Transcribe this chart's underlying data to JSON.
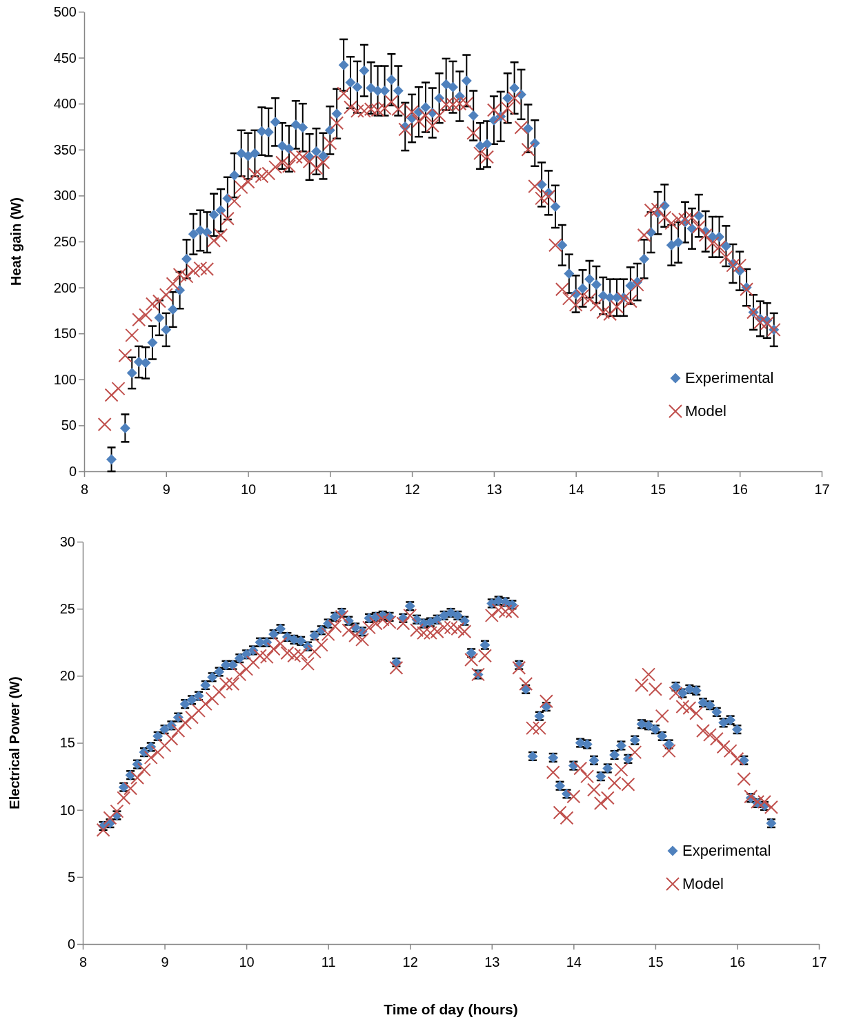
{
  "chart_data": [
    {
      "type": "scatter",
      "ylabel": "Heat gain (W)",
      "xlim": [
        8,
        17
      ],
      "xticks": [
        8,
        9,
        10,
        11,
        12,
        13,
        14,
        15,
        16,
        17
      ],
      "ylim": [
        0,
        500
      ],
      "yticks": [
        0,
        50,
        100,
        150,
        200,
        250,
        300,
        350,
        400,
        450,
        500
      ],
      "legend": "right",
      "grid": false,
      "series": [
        {
          "name": "Experimental",
          "color": "#4f81bd",
          "marker": "diamond",
          "x": [
            8.333,
            8.417,
            8.5,
            8.583,
            8.667,
            8.75,
            8.833,
            8.917,
            9,
            9.083,
            9.167,
            9.25,
            9.333,
            9.417,
            9.5,
            9.583,
            9.667,
            9.75,
            9.833,
            9.917,
            10,
            10.083,
            10.167,
            10.25,
            10.333,
            10.417,
            10.5,
            10.583,
            10.667,
            10.75,
            10.833,
            10.917,
            11,
            11.083,
            11.167,
            11.25,
            11.333,
            11.417,
            11.5,
            11.583,
            11.667,
            11.75,
            11.833,
            11.917,
            12,
            12.083,
            12.167,
            12.25,
            12.333,
            12.417,
            12.5,
            12.583,
            12.667,
            12.75,
            12.833,
            12.917,
            13,
            13.083,
            13.167,
            13.25,
            13.333,
            13.417,
            13.5,
            13.583,
            13.667,
            13.75,
            13.833,
            13.917,
            14,
            14.083,
            14.167,
            14.25,
            14.333,
            14.417,
            14.5,
            14.583,
            14.667,
            14.75,
            14.833,
            14.917,
            15,
            15.083,
            15.167,
            15.25,
            15.333,
            15.417,
            15.5,
            15.583,
            15.667,
            15.75,
            15.833,
            15.917,
            16,
            16.083,
            16.167,
            16.25,
            16.333,
            16.417
          ],
          "values": [
            13,
            null,
            47,
            107,
            119,
            118,
            140,
            167,
            154,
            176,
            197,
            231,
            258,
            262,
            260,
            279,
            284,
            297,
            322,
            346,
            343,
            346,
            370,
            369,
            380,
            354,
            351,
            377,
            374,
            342,
            348,
            343,
            371,
            389,
            442,
            423,
            418,
            436,
            417,
            414,
            414,
            426,
            414,
            375,
            384,
            391,
            396,
            390,
            406,
            421,
            418,
            408,
            425,
            387,
            354,
            356,
            382,
            386,
            406,
            417,
            410,
            373,
            357,
            312,
            303,
            288,
            246,
            215,
            193,
            199,
            209,
            203,
            191,
            189,
            189,
            189,
            202,
            206,
            231,
            260,
            281,
            289,
            246,
            249,
            271,
            264,
            278,
            261,
            255,
            255,
            245,
            226,
            218,
            200,
            173,
            166,
            164,
            154
          ],
          "errors": [
            13,
            null,
            15,
            17,
            17,
            17,
            18,
            19,
            18,
            19,
            20,
            21,
            22,
            22,
            22,
            23,
            23,
            23,
            24,
            25,
            25,
            25,
            26,
            26,
            26,
            25,
            25,
            26,
            26,
            25,
            25,
            25,
            26,
            27,
            28,
            28,
            28,
            28,
            28,
            27,
            27,
            28,
            27,
            26,
            26,
            27,
            27,
            27,
            27,
            28,
            28,
            27,
            28,
            27,
            25,
            25,
            26,
            27,
            27,
            28,
            27,
            26,
            25,
            24,
            24,
            23,
            22,
            21,
            20,
            20,
            20,
            20,
            20,
            20,
            20,
            20,
            20,
            20,
            21,
            22,
            23,
            23,
            22,
            22,
            22,
            22,
            23,
            22,
            22,
            22,
            22,
            21,
            21,
            20,
            19,
            19,
            19,
            18
          ]
        },
        {
          "name": "Model",
          "color": "#c0504d",
          "marker": "cross",
          "x": [
            8.25,
            8.333,
            8.417,
            8.5,
            8.583,
            8.667,
            8.75,
            8.833,
            8.917,
            9,
            9.083,
            9.167,
            9.25,
            9.333,
            9.417,
            9.5,
            9.583,
            9.667,
            9.75,
            9.833,
            9.917,
            10,
            10.083,
            10.167,
            10.25,
            10.333,
            10.417,
            10.5,
            10.583,
            10.667,
            10.75,
            10.833,
            10.917,
            11,
            11.083,
            11.167,
            11.25,
            11.333,
            11.417,
            11.5,
            11.583,
            11.667,
            11.75,
            11.833,
            11.917,
            12,
            12.083,
            12.167,
            12.25,
            12.333,
            12.417,
            12.5,
            12.583,
            12.667,
            12.75,
            12.833,
            12.917,
            13,
            13.083,
            13.167,
            13.25,
            13.333,
            13.417,
            13.5,
            13.583,
            13.667,
            13.75,
            13.833,
            13.917,
            14,
            14.083,
            14.167,
            14.25,
            14.333,
            14.417,
            14.5,
            14.583,
            14.667,
            14.75,
            14.833,
            14.917,
            15,
            15.083,
            15.167,
            15.25,
            15.333,
            15.417,
            15.5,
            15.583,
            15.667,
            15.75,
            15.833,
            15.917,
            16,
            16.083,
            16.167,
            16.25,
            16.333,
            16.417
          ],
          "values": [
            51,
            83,
            90,
            126,
            148,
            165,
            170,
            182,
            185,
            192,
            204,
            214,
            212,
            218,
            221,
            220,
            251,
            257,
            275,
            294,
            309,
            315,
            323,
            321,
            324,
            331,
            336,
            332,
            342,
            342,
            337,
            330,
            336,
            357,
            379,
            411,
            396,
            392,
            392,
            394,
            393,
            395,
            402,
            394,
            372,
            391,
            381,
            387,
            376,
            387,
            399,
            399,
            400,
            400,
            368,
            346,
            342,
            393,
            386,
            395,
            406,
            374,
            350,
            310,
            297,
            299,
            246,
            198,
            188,
            181,
            191,
            187,
            181,
            173,
            171,
            179,
            188,
            185,
            203,
            257,
            284,
            285,
            276,
            270,
            274,
            274,
            276,
            266,
            257,
            248,
            244,
            233,
            224,
            224,
            198,
            173,
            162,
            161,
            154
          ]
        }
      ]
    },
    {
      "type": "scatter",
      "xlabel": "Time of day (hours)",
      "ylabel": "Electrical Power (W)",
      "xlim": [
        8,
        17
      ],
      "xticks": [
        8,
        9,
        10,
        11,
        12,
        13,
        14,
        15,
        16,
        17
      ],
      "ylim": [
        0,
        30
      ],
      "yticks": [
        0,
        5,
        10,
        15,
        20,
        25,
        30
      ],
      "legend": "right",
      "grid": false,
      "series": [
        {
          "name": "Experimental",
          "color": "#4f81bd",
          "marker": "diamond",
          "x": [
            8.25,
            8.333,
            8.417,
            8.5,
            8.583,
            8.667,
            8.75,
            8.833,
            8.917,
            9,
            9.083,
            9.167,
            9.25,
            9.333,
            9.417,
            9.5,
            9.583,
            9.667,
            9.75,
            9.833,
            9.917,
            10,
            10.083,
            10.167,
            10.25,
            10.333,
            10.417,
            10.5,
            10.583,
            10.667,
            10.75,
            10.833,
            10.917,
            11,
            11.083,
            11.167,
            11.25,
            11.333,
            11.417,
            11.5,
            11.583,
            11.667,
            11.75,
            11.833,
            11.917,
            12,
            12.083,
            12.167,
            12.25,
            12.333,
            12.417,
            12.5,
            12.583,
            12.667,
            12.75,
            12.833,
            12.917,
            13,
            13.083,
            13.167,
            13.25,
            13.333,
            13.417,
            13.5,
            13.583,
            13.667,
            13.75,
            13.833,
            13.917,
            14,
            14.083,
            14.167,
            14.25,
            14.333,
            14.417,
            14.5,
            14.583,
            14.667,
            14.75,
            14.833,
            14.917,
            15,
            15.083,
            15.167,
            15.25,
            15.333,
            15.417,
            15.5,
            15.583,
            15.667,
            15.75,
            15.833,
            15.917,
            16,
            16.083,
            16.167,
            16.25,
            16.333,
            16.417
          ],
          "values": [
            8.8,
            9.0,
            9.6,
            11.7,
            12.6,
            13.4,
            14.3,
            14.7,
            15.5,
            16.0,
            16.3,
            16.9,
            17.9,
            18.2,
            18.5,
            19.3,
            19.9,
            20.3,
            20.8,
            20.8,
            21.3,
            21.6,
            21.9,
            22.5,
            22.5,
            23.1,
            23.5,
            22.9,
            22.7,
            22.6,
            22.2,
            23.0,
            23.4,
            23.9,
            24.4,
            24.7,
            24.1,
            23.6,
            23.3,
            24.3,
            24.4,
            24.5,
            24.4,
            21.0,
            24.3,
            25.2,
            24.2,
            23.9,
            24.0,
            24.2,
            24.5,
            24.7,
            24.5,
            24.1,
            21.7,
            20.1,
            22.3,
            25.4,
            25.6,
            25.5,
            25.3,
            20.8,
            19.0,
            14.0,
            17.0,
            17.7,
            13.9,
            11.8,
            11.2,
            13.3,
            15.0,
            14.9,
            13.7,
            12.5,
            13.1,
            14.1,
            14.8,
            13.8,
            15.2,
            16.4,
            16.3,
            16.0,
            15.5,
            14.9,
            19.2,
            18.7,
            19.0,
            18.9,
            18.0,
            17.8,
            17.3,
            16.5,
            16.7,
            16.0,
            13.7,
            10.9,
            10.5,
            10.3,
            9.0
          ],
          "errors": [
            0.3,
            0.3,
            0.3,
            0.3,
            0.3,
            0.3,
            0.3,
            0.3,
            0.3,
            0.3,
            0.3,
            0.3,
            0.3,
            0.3,
            0.3,
            0.3,
            0.3,
            0.3,
            0.3,
            0.3,
            0.3,
            0.3,
            0.3,
            0.3,
            0.3,
            0.3,
            0.3,
            0.3,
            0.3,
            0.3,
            0.3,
            0.3,
            0.3,
            0.3,
            0.3,
            0.3,
            0.3,
            0.3,
            0.3,
            0.3,
            0.3,
            0.3,
            0.3,
            0.3,
            0.3,
            0.3,
            0.3,
            0.3,
            0.3,
            0.3,
            0.3,
            0.3,
            0.3,
            0.3,
            0.3,
            0.3,
            0.3,
            0.3,
            0.3,
            0.3,
            0.3,
            0.3,
            0.3,
            0.3,
            0.3,
            0.3,
            0.3,
            0.3,
            0.3,
            0.3,
            0.3,
            0.3,
            0.3,
            0.3,
            0.3,
            0.3,
            0.3,
            0.3,
            0.3,
            0.3,
            0.3,
            0.3,
            0.3,
            0.3,
            0.3,
            0.3,
            0.3,
            0.3,
            0.3,
            0.3,
            0.3,
            0.3,
            0.3,
            0.3,
            0.3,
            0.3,
            0.3,
            0.3,
            0.3
          ]
        },
        {
          "name": "Model",
          "color": "#c0504d",
          "marker": "cross",
          "x": [
            8.25,
            8.333,
            8.417,
            8.5,
            8.583,
            8.667,
            8.75,
            8.833,
            8.917,
            9,
            9.083,
            9.167,
            9.25,
            9.333,
            9.417,
            9.5,
            9.583,
            9.667,
            9.75,
            9.833,
            9.917,
            10,
            10.083,
            10.167,
            10.25,
            10.333,
            10.417,
            10.5,
            10.583,
            10.667,
            10.75,
            10.833,
            10.917,
            11,
            11.083,
            11.167,
            11.25,
            11.333,
            11.417,
            11.5,
            11.583,
            11.667,
            11.75,
            11.833,
            11.917,
            12,
            12.083,
            12.167,
            12.25,
            12.333,
            12.417,
            12.5,
            12.583,
            12.667,
            12.75,
            12.833,
            12.917,
            13,
            13.083,
            13.167,
            13.25,
            13.333,
            13.417,
            13.5,
            13.583,
            13.667,
            13.75,
            13.833,
            13.917,
            14,
            14.083,
            14.167,
            14.25,
            14.333,
            14.417,
            14.5,
            14.583,
            14.667,
            14.75,
            14.833,
            14.917,
            15,
            15.083,
            15.167,
            15.25,
            15.333,
            15.417,
            15.5,
            15.583,
            15.667,
            15.75,
            15.833,
            15.917,
            16,
            16.083,
            16.167,
            16.25,
            16.333,
            16.417
          ],
          "values": [
            8.5,
            9.4,
            9.9,
            10.9,
            11.6,
            12.4,
            13.0,
            13.9,
            14.3,
            14.8,
            15.3,
            15.9,
            16.5,
            16.9,
            17.4,
            17.9,
            18.3,
            18.8,
            19.4,
            19.4,
            20.1,
            20.5,
            21.0,
            21.5,
            21.4,
            22.0,
            22.4,
            21.7,
            21.5,
            21.6,
            20.9,
            21.8,
            22.3,
            23.1,
            23.7,
            24.4,
            23.4,
            23.0,
            22.7,
            23.6,
            23.9,
            24.2,
            24.0,
            20.6,
            23.9,
            24.5,
            23.4,
            23.2,
            23.2,
            23.3,
            23.6,
            23.6,
            23.5,
            23.3,
            21.2,
            20.1,
            21.5,
            24.5,
            24.9,
            24.8,
            24.8,
            20.6,
            19.4,
            16.1,
            16.1,
            18.1,
            12.8,
            9.8,
            9.4,
            11.0,
            13.1,
            12.5,
            11.5,
            10.5,
            10.9,
            12.0,
            13.0,
            11.9,
            14.3,
            19.3,
            20.1,
            19.0,
            17.0,
            14.4,
            18.7,
            17.7,
            17.6,
            17.2,
            15.9,
            15.6,
            15.3,
            14.7,
            14.4,
            13.8,
            12.3,
            11.0,
            10.6,
            10.6,
            10.2
          ]
        }
      ]
    }
  ]
}
